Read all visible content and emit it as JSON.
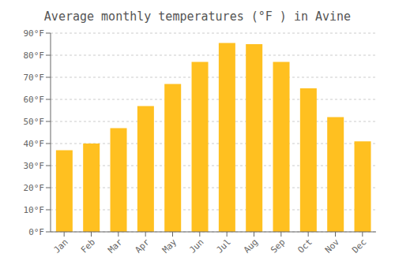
{
  "chart_data": {
    "type": "bar",
    "title": "Average monthly temperatures (°F ) in Avine",
    "categories": [
      "Jan",
      "Feb",
      "Mar",
      "Apr",
      "May",
      "Jun",
      "Jul",
      "Aug",
      "Sep",
      "Oct",
      "Nov",
      "Dec"
    ],
    "values": [
      37,
      40,
      47,
      57,
      67,
      77,
      85.5,
      85,
      77,
      65,
      52,
      41
    ],
    "color": "#FFC020",
    "ylim": [
      0,
      90
    ],
    "yticks": [
      {
        "value": 0,
        "label": "0°F"
      },
      {
        "value": 10,
        "label": "10°F"
      },
      {
        "value": 20,
        "label": "20°F"
      },
      {
        "value": 30,
        "label": "30°F"
      },
      {
        "value": 40,
        "label": "40°F"
      },
      {
        "value": 50,
        "label": "50°F"
      },
      {
        "value": 60,
        "label": "60°F"
      },
      {
        "value": 70,
        "label": "70°F"
      },
      {
        "value": 80,
        "label": "80°F"
      },
      {
        "value": 90,
        "label": "90°F"
      }
    ],
    "grid": true
  }
}
